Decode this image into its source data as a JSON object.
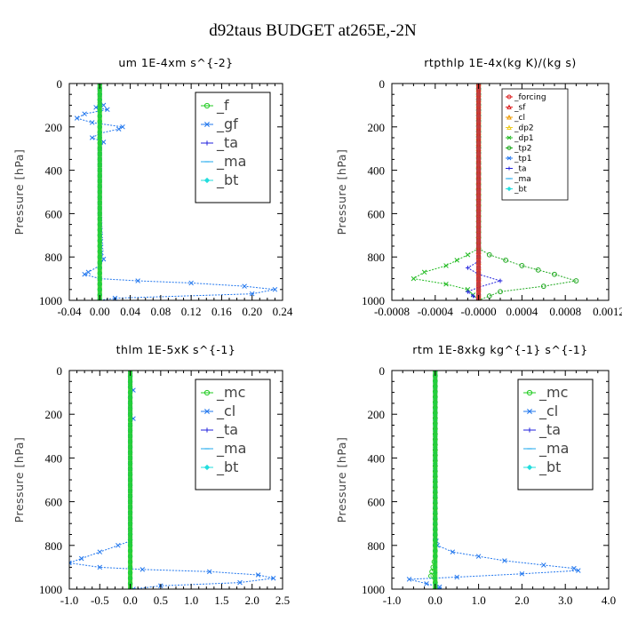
{
  "suptitle": "d92taus  BUDGET at265E,-2N",
  "chart_data": [
    {
      "type": "line",
      "title": "um   1E-4xm s^{-2}",
      "ylabel": "Pressure [hPa]",
      "xlim": [
        -0.04,
        0.24
      ],
      "ylim": [
        0,
        1000
      ],
      "y_inverted": true,
      "xticks": [
        -0.04,
        0.0,
        0.04,
        0.08,
        0.12,
        0.16,
        0.2,
        0.24
      ],
      "xtick_labels": [
        "-0.04",
        "0.00",
        "0.04",
        "0.08",
        "0.12",
        "0.16",
        "0.20",
        "0.24"
      ],
      "yticks": [
        0,
        200,
        400,
        600,
        800,
        1000
      ],
      "ytick_labels": [
        "0",
        "200",
        "400",
        "600",
        "800",
        "1000"
      ],
      "legend_position": "top-right",
      "legend_style": "big",
      "series": [
        {
          "name": "_f",
          "color": "#22cc22",
          "marker": "circle",
          "points": [
            [
              0.0,
              0
            ],
            [
              0.0,
              200
            ],
            [
              0.0,
              400
            ],
            [
              0.0,
              600
            ],
            [
              0.0,
              800
            ],
            [
              0.0,
              1000
            ]
          ]
        },
        {
          "name": "_gf",
          "color": "#2277ee",
          "marker": "x",
          "points": [
            [
              0.0,
              0
            ],
            [
              0.0,
              80
            ],
            [
              0.005,
              100
            ],
            [
              -0.005,
              110
            ],
            [
              0.01,
              120
            ],
            [
              -0.02,
              140
            ],
            [
              -0.03,
              160
            ],
            [
              -0.01,
              180
            ],
            [
              0.03,
              200
            ],
            [
              0.025,
              210
            ],
            [
              0.0,
              230
            ],
            [
              -0.01,
              250
            ],
            [
              0.005,
              270
            ],
            [
              0.0,
              300
            ],
            [
              0.0,
              400
            ],
            [
              0.0,
              600
            ],
            [
              0.002,
              780
            ],
            [
              0.005,
              810
            ],
            [
              0.0,
              840
            ],
            [
              -0.015,
              870
            ],
            [
              -0.02,
              880
            ],
            [
              0.0,
              900
            ],
            [
              0.05,
              910
            ],
            [
              0.12,
              920
            ],
            [
              0.19,
              935
            ],
            [
              0.23,
              950
            ],
            [
              0.2,
              970
            ],
            [
              0.02,
              990
            ],
            [
              0.0,
              1000
            ]
          ]
        },
        {
          "name": "_ta",
          "color": "#2222dd",
          "marker": "plus",
          "points": [
            [
              0.0,
              0
            ],
            [
              0.0,
              1000
            ]
          ]
        },
        {
          "name": "_ma",
          "color": "#22aaee",
          "marker": "dash",
          "points": [
            [
              0.0,
              0
            ],
            [
              0.0,
              1000
            ]
          ]
        },
        {
          "name": "_bt",
          "color": "#22dddd",
          "marker": "diamond",
          "points": [
            [
              0.0,
              0
            ],
            [
              0.0,
              1000
            ]
          ]
        }
      ]
    },
    {
      "type": "line",
      "title": "rtpthlp   1E-4x(kg K)/(kg s)",
      "ylabel": "Pressure [hPa]",
      "xlim": [
        -0.0008,
        0.0012
      ],
      "ylim": [
        0,
        1000
      ],
      "y_inverted": true,
      "xticks": [
        -0.0008,
        -0.0004,
        0.0,
        0.0004,
        0.0008,
        0.0012
      ],
      "xtick_labels": [
        "-0.0008",
        "-0.0004",
        "-0.0000",
        "0.0004",
        "0.0008",
        "0.0012"
      ],
      "yticks": [
        0,
        200,
        400,
        600,
        800,
        1000
      ],
      "ytick_labels": [
        "0",
        "200",
        "400",
        "600",
        "800",
        "1000"
      ],
      "legend_position": "top-right",
      "legend_style": "small",
      "series": [
        {
          "name": "_forcing",
          "color": "#dd2222",
          "marker": "circle",
          "points": [
            [
              0.0,
              0
            ],
            [
              0.0,
              1000
            ]
          ]
        },
        {
          "name": "_sf",
          "color": "#dd2222",
          "marker": "triangle",
          "points": [
            [
              0.0,
              0
            ],
            [
              0.0,
              1000
            ]
          ]
        },
        {
          "name": "_cl",
          "color": "#ee9900",
          "marker": "triangle",
          "points": [
            [
              0.0,
              0
            ],
            [
              0.0,
              1000
            ]
          ]
        },
        {
          "name": "_dp2",
          "color": "#eecc22",
          "marker": "triangle",
          "points": [
            [
              0.0,
              0
            ],
            [
              0.0,
              1000
            ]
          ]
        },
        {
          "name": "_dp1",
          "color": "#22bb22",
          "marker": "x",
          "points": [
            [
              0.0,
              0
            ],
            [
              0.0,
              760
            ],
            [
              -0.0001,
              790
            ],
            [
              -0.0003,
              840
            ],
            [
              -0.0005,
              870
            ],
            [
              -0.0006,
              900
            ],
            [
              -0.0003,
              925
            ],
            [
              -0.0001,
              950
            ],
            [
              0.0,
              1000
            ]
          ]
        },
        {
          "name": "_tp2",
          "color": "#22aa22",
          "marker": "circle",
          "points": [
            [
              0.0,
              0
            ],
            [
              0.0,
              760
            ],
            [
              0.0001,
              790
            ],
            [
              0.0004,
              840
            ],
            [
              0.0007,
              880
            ],
            [
              0.0009,
              910
            ],
            [
              0.0006,
              935
            ],
            [
              0.0002,
              960
            ],
            [
              0.0,
              1000
            ]
          ]
        },
        {
          "name": "_tp1",
          "color": "#2277ee",
          "marker": "x",
          "points": [
            [
              0.0,
              0
            ],
            [
              0.0,
              1000
            ]
          ]
        },
        {
          "name": "_ta",
          "color": "#2222dd",
          "marker": "plus",
          "points": [
            [
              0.0,
              0
            ],
            [
              0.0,
              820
            ],
            [
              -0.0001,
              850
            ],
            [
              0.0,
              880
            ],
            [
              0.0002,
              910
            ],
            [
              0.0,
              940
            ],
            [
              -0.0001,
              960
            ],
            [
              0.0,
              1000
            ]
          ]
        },
        {
          "name": "_ma",
          "color": "#22aaee",
          "marker": "dash",
          "points": [
            [
              0.0,
              0
            ],
            [
              0.0,
              1000
            ]
          ]
        },
        {
          "name": "_bt",
          "color": "#22dddd",
          "marker": "diamond",
          "points": [
            [
              0.0,
              0
            ],
            [
              0.0,
              1000
            ]
          ]
        }
      ]
    },
    {
      "type": "line",
      "title": "thlm   1E-5xK s^{-1}",
      "ylabel": "Pressure [hPa]",
      "xlim": [
        -1.0,
        2.5
      ],
      "ylim": [
        0,
        1000
      ],
      "y_inverted": true,
      "xticks": [
        -1.0,
        -0.5,
        0.0,
        0.5,
        1.0,
        1.5,
        2.0,
        2.5
      ],
      "xtick_labels": [
        "-1.0",
        "-0.5",
        "0.0",
        "0.5",
        "1.0",
        "1.5",
        "2.0",
        "2.5"
      ],
      "yticks": [
        0,
        200,
        400,
        600,
        800,
        1000
      ],
      "ytick_labels": [
        "0",
        "200",
        "400",
        "600",
        "800",
        "1000"
      ],
      "legend_position": "top-right",
      "legend_style": "big",
      "series": [
        {
          "name": "_mc",
          "color": "#22cc22",
          "marker": "circle",
          "points": [
            [
              0.0,
              0
            ],
            [
              0.0,
              1000
            ]
          ]
        },
        {
          "name": "_cl",
          "color": "#2277ee",
          "marker": "x",
          "points": [
            [
              0.0,
              0
            ],
            [
              0.0,
              70
            ],
            [
              0.05,
              90
            ],
            [
              0.0,
              110
            ],
            [
              0.0,
              200
            ],
            [
              0.05,
              220
            ],
            [
              0.0,
              250
            ],
            [
              0.0,
              400
            ],
            [
              0.0,
              600
            ],
            [
              0.0,
              780
            ],
            [
              -0.2,
              800
            ],
            [
              -0.5,
              830
            ],
            [
              -0.8,
              860
            ],
            [
              -1.0,
              880
            ],
            [
              -0.5,
              900
            ],
            [
              0.2,
              910
            ],
            [
              1.3,
              920
            ],
            [
              2.1,
              935
            ],
            [
              2.35,
              950
            ],
            [
              1.8,
              970
            ],
            [
              0.5,
              985
            ],
            [
              0.05,
              1000
            ]
          ]
        },
        {
          "name": "_ta",
          "color": "#2222dd",
          "marker": "plus",
          "points": [
            [
              0.0,
              0
            ],
            [
              0.0,
              1000
            ]
          ]
        },
        {
          "name": "_ma",
          "color": "#22aaee",
          "marker": "dash",
          "points": [
            [
              0.0,
              0
            ],
            [
              0.0,
              1000
            ]
          ]
        },
        {
          "name": "_bt",
          "color": "#22dddd",
          "marker": "diamond",
          "points": [
            [
              0.0,
              0
            ],
            [
              0.0,
              1000
            ]
          ]
        }
      ]
    },
    {
      "type": "line",
      "title": "rtm   1E-8xkg kg^{-1} s^{-1}",
      "ylabel": "Pressure [hPa]",
      "xlim": [
        -1.0,
        4.0
      ],
      "ylim": [
        0,
        1000
      ],
      "y_inverted": true,
      "xticks": [
        -1.0,
        0.0,
        1.0,
        2.0,
        3.0,
        4.0
      ],
      "xtick_labels": [
        "-1.0",
        "0.0",
        "1.0",
        "2.0",
        "3.0",
        "4.0"
      ],
      "yticks": [
        0,
        200,
        400,
        600,
        800,
        1000
      ],
      "ytick_labels": [
        "0",
        "200",
        "400",
        "600",
        "800",
        "1000"
      ],
      "legend_position": "top-right",
      "legend_style": "big",
      "series": [
        {
          "name": "_mc",
          "color": "#22cc22",
          "marker": "circle",
          "points": [
            [
              0.0,
              0
            ],
            [
              0.0,
              800
            ],
            [
              0.0,
              850
            ],
            [
              -0.05,
              900
            ],
            [
              -0.1,
              940
            ],
            [
              0.0,
              970
            ],
            [
              0.0,
              1000
            ]
          ]
        },
        {
          "name": "_cl",
          "color": "#2277ee",
          "marker": "x",
          "points": [
            [
              0.0,
              0
            ],
            [
              0.0,
              760
            ],
            [
              0.05,
              800
            ],
            [
              0.4,
              830
            ],
            [
              1.0,
              850
            ],
            [
              1.6,
              870
            ],
            [
              2.5,
              890
            ],
            [
              3.2,
              905
            ],
            [
              3.3,
              915
            ],
            [
              2.0,
              930
            ],
            [
              0.5,
              945
            ],
            [
              -0.6,
              955
            ],
            [
              -0.2,
              975
            ],
            [
              0.1,
              990
            ],
            [
              0.1,
              1000
            ]
          ]
        },
        {
          "name": "_ta",
          "color": "#2222dd",
          "marker": "plus",
          "points": [
            [
              0.0,
              0
            ],
            [
              0.0,
              1000
            ]
          ]
        },
        {
          "name": "_ma",
          "color": "#22aaee",
          "marker": "dash",
          "points": [
            [
              0.0,
              0
            ],
            [
              0.0,
              1000
            ]
          ]
        },
        {
          "name": "_bt",
          "color": "#22dddd",
          "marker": "diamond",
          "points": [
            [
              0.0,
              0
            ],
            [
              0.0,
              1000
            ]
          ]
        }
      ]
    }
  ]
}
